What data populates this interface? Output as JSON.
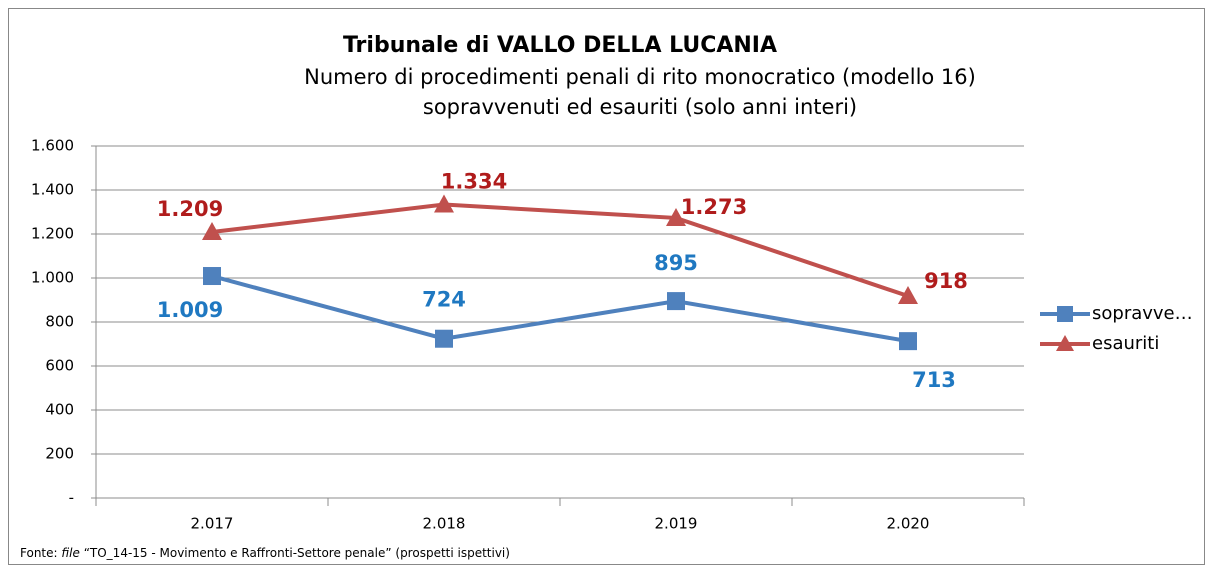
{
  "chart_data": {
    "type": "line",
    "title": "Tribunale di VALLO DELLA LUCANIA",
    "subtitle": [
      "Numero di procedimenti penali di rito monocratico (modello 16)",
      "sopravvenuti ed esauriti (solo anni interi)"
    ],
    "categories": [
      "2.017",
      "2.018",
      "2.019",
      "2.020"
    ],
    "series": [
      {
        "name": "sopravve…",
        "color": "#4f81bd",
        "label_color": "#1f78c1",
        "marker": "square",
        "values": [
          1009,
          724,
          895,
          713
        ],
        "value_labels": [
          "1.009",
          "724",
          "895",
          "713"
        ]
      },
      {
        "name": "esauriti",
        "color": "#c0504d",
        "label_color": "#b01c1c",
        "marker": "triangle",
        "values": [
          1209,
          1334,
          1273,
          918
        ],
        "value_labels": [
          "1.209",
          "1.334",
          "1.273",
          "918"
        ]
      }
    ],
    "ylim": [
      0,
      1600
    ],
    "yticks": [
      {
        "value": 0,
        "label": "-"
      },
      200,
      400,
      600,
      800,
      {
        "value": 1000,
        "label": "1.000"
      },
      {
        "value": 1200,
        "label": "1.200"
      },
      {
        "value": 1400,
        "label": "1.400"
      },
      {
        "value": 1600,
        "label": "1.600"
      }
    ],
    "grid": true,
    "legend": "right",
    "source": [
      "Fonte:",
      "file",
      "“TO_14-15 - Movimento e Raffronti-Settore penale” (prospetti ispettivi)"
    ]
  }
}
